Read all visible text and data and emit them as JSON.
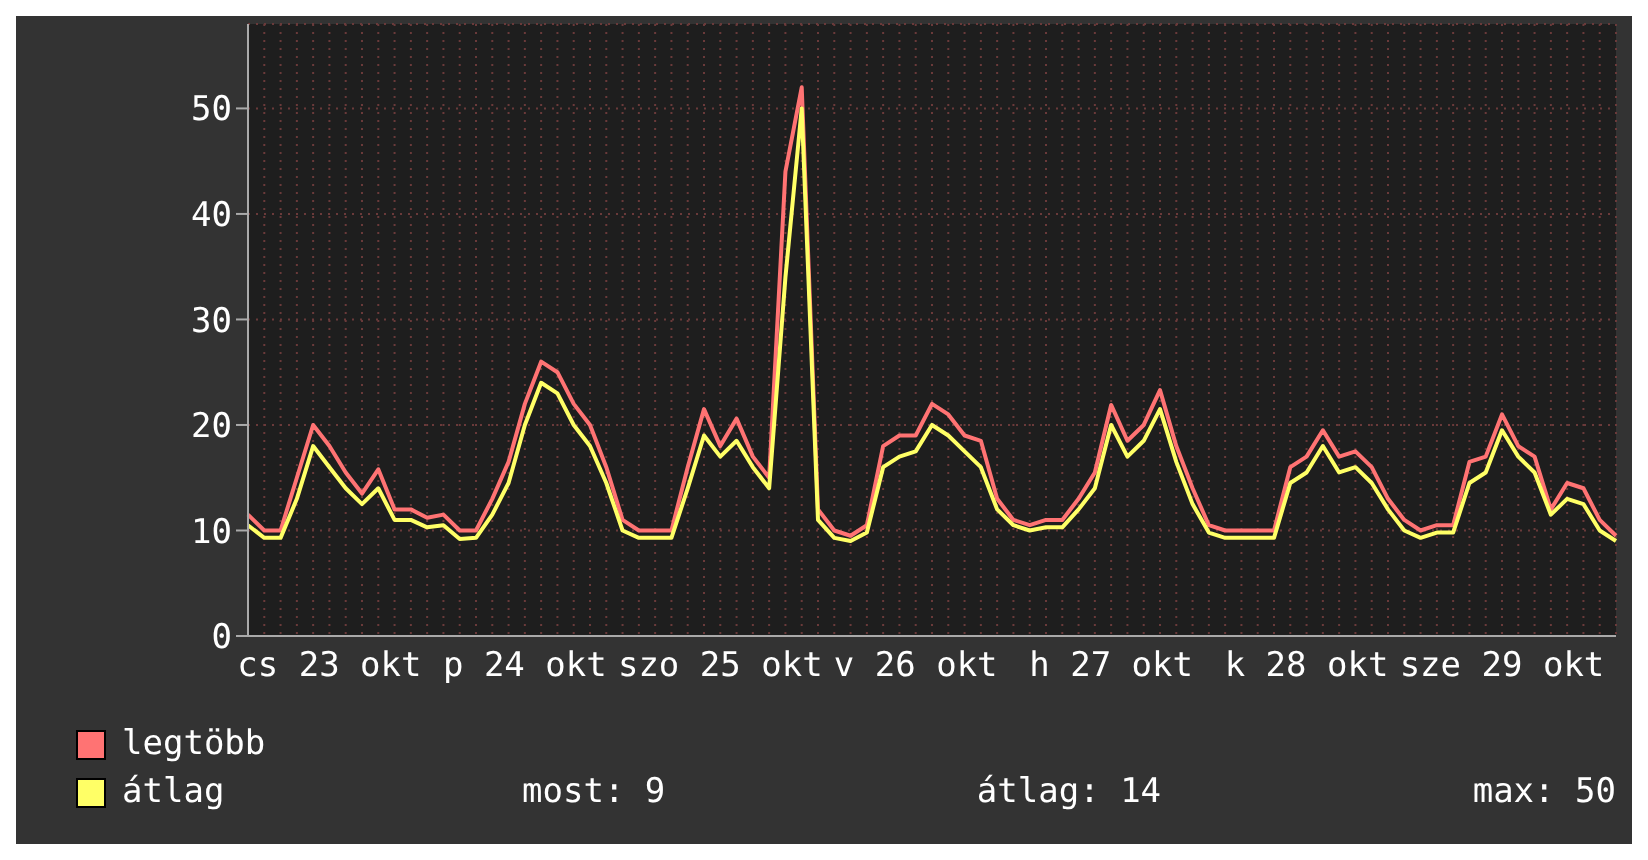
{
  "chart_data": {
    "type": "line",
    "legend": "bottom left",
    "grid": true,
    "marker": "none",
    "line_style": "solid",
    "categories": [
      null,
      null,
      null,
      null,
      null,
      "cs 23 okt",
      null,
      null,
      null,
      null,
      null,
      null,
      null,
      null,
      null,
      null,
      null,
      "p 24 okt",
      null,
      null,
      null,
      null,
      null,
      null,
      null,
      null,
      null,
      null,
      null,
      "szo 25 okt",
      null,
      null,
      null,
      null,
      null,
      null,
      null,
      null,
      null,
      null,
      null,
      "v 26 okt",
      null,
      null,
      null,
      null,
      null,
      null,
      null,
      null,
      null,
      null,
      null,
      "h 27 okt",
      null,
      null,
      null,
      null,
      null,
      null,
      null,
      null,
      null,
      null,
      null,
      "k 28 okt",
      null,
      null,
      null,
      null,
      null,
      null,
      null,
      null,
      null,
      null,
      null,
      "sze 29 okt",
      null,
      null,
      null,
      null,
      null,
      null,
      null
    ],
    "ylim": [
      0,
      58
    ],
    "yticks": [
      0,
      10,
      20,
      30,
      40,
      50
    ],
    "series": [
      {
        "name": "legtöbb",
        "color": "#ff7373",
        "values": [
          11.5,
          10,
          10,
          15,
          20,
          18,
          15.5,
          13.5,
          15.8,
          12,
          12,
          11.2,
          11.5,
          10,
          10,
          13,
          16.5,
          22,
          26,
          25,
          22,
          20,
          16,
          11,
          10,
          10,
          10,
          16,
          21.5,
          18,
          20.6,
          17,
          15,
          44,
          52,
          12,
          10,
          9.5,
          10.5,
          18,
          19,
          19,
          22,
          21,
          19,
          18.5,
          13,
          11,
          10.5,
          11,
          11,
          13,
          15.5,
          21.9,
          18.5,
          20,
          23.3,
          18,
          14,
          10.5,
          10,
          10,
          10,
          10,
          16,
          17,
          19.5,
          17,
          17.5,
          16,
          13,
          11,
          10,
          10.5,
          10.5,
          16.5,
          17,
          21,
          18,
          17,
          12,
          14.5,
          14,
          11,
          9.5
        ]
      },
      {
        "name": "átlag",
        "color": "#ffff66",
        "values": [
          10.5,
          9.3,
          9.3,
          13,
          18,
          16,
          14,
          12.5,
          14,
          11,
          11,
          10.3,
          10.5,
          9.2,
          9.3,
          11.5,
          14.5,
          20,
          24,
          23,
          20,
          18,
          14.5,
          10,
          9.3,
          9.3,
          9.3,
          14,
          19,
          17,
          18.5,
          16,
          14,
          34,
          50,
          11,
          9.3,
          9,
          9.8,
          16,
          17,
          17.5,
          20,
          19,
          17.5,
          16,
          12,
          10.5,
          10,
          10.3,
          10.3,
          12,
          14,
          20,
          17,
          18.5,
          21.5,
          16.5,
          12.5,
          9.8,
          9.3,
          9.3,
          9.3,
          9.3,
          14.5,
          15.5,
          18,
          15.5,
          16,
          14.5,
          12,
          10,
          9.3,
          9.8,
          9.8,
          14.5,
          15.5,
          19.5,
          17,
          15.5,
          11.5,
          13,
          12.5,
          10,
          9
        ]
      }
    ],
    "annotations": [
      "most: 9",
      "átlag: 14",
      "max: 50"
    ]
  }
}
